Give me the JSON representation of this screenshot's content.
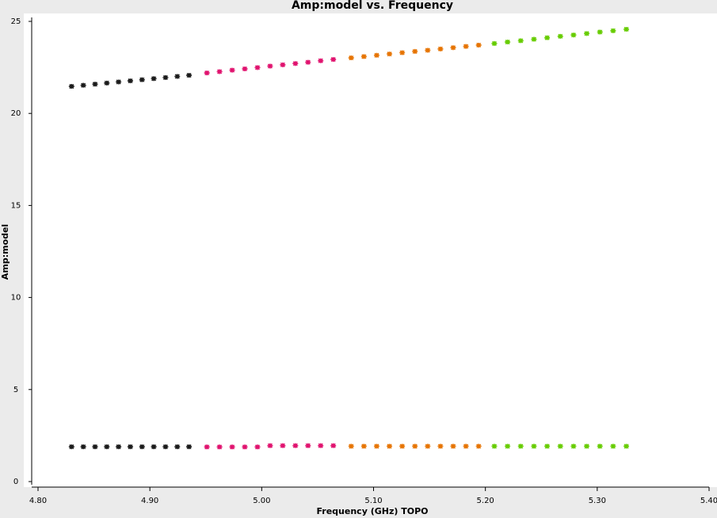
{
  "chart_data": {
    "type": "scatter",
    "title": "Amp:model vs. Frequency",
    "x_label": "Frequency (GHz) TOPO",
    "y_label": "Amp:model",
    "xlim": [
      4.8,
      5.4
    ],
    "ylim": [
      0,
      25
    ],
    "xticks": [
      {
        "value": 4.8,
        "label": "4.80"
      },
      {
        "value": 4.9,
        "label": "4.90"
      },
      {
        "value": 5.0,
        "label": "5.00"
      },
      {
        "value": 5.1,
        "label": "5.10"
      },
      {
        "value": 5.2,
        "label": "5.20"
      },
      {
        "value": 5.3,
        "label": "5.30"
      },
      {
        "value": 5.4,
        "label": "5.40"
      }
    ],
    "yticks": [
      0,
      5,
      10,
      15,
      20,
      25
    ],
    "series": [
      {
        "color": "#1a1a1a",
        "x": [
          4.83,
          4.8405,
          4.851,
          4.8615,
          4.872,
          4.8825,
          4.893,
          4.9035,
          4.914,
          4.9245,
          4.935
        ],
        "values": [
          21.47,
          21.53,
          21.59,
          21.65,
          21.71,
          21.77,
          21.83,
          21.89,
          21.95,
          22.01,
          22.07
        ]
      },
      {
        "color": "#1a1a1a",
        "x": [
          4.83,
          4.8405,
          4.851,
          4.8615,
          4.872,
          4.8825,
          4.893,
          4.9035,
          4.914,
          4.9245,
          4.935
        ],
        "values": [
          1.89,
          1.89,
          1.89,
          1.89,
          1.89,
          1.89,
          1.89,
          1.89,
          1.89,
          1.89,
          1.89
        ]
      },
      {
        "color": "#e0126e",
        "x": [
          4.951,
          4.9623,
          4.9736,
          4.9849,
          4.9962,
          5.0075,
          5.0188,
          5.0301,
          5.0414,
          5.0527,
          5.064
        ],
        "values": [
          22.2,
          22.27,
          22.35,
          22.42,
          22.49,
          22.57,
          22.64,
          22.71,
          22.78,
          22.86,
          22.93
        ]
      },
      {
        "color": "#e0126e",
        "x": [
          4.951,
          4.9623,
          4.9736,
          4.9849,
          4.9962,
          5.0075,
          5.0188,
          5.0301,
          5.0414,
          5.0527,
          5.064
        ],
        "values": [
          1.88,
          1.88,
          1.88,
          1.88,
          1.88,
          1.95,
          1.95,
          1.95,
          1.95,
          1.95,
          1.95
        ]
      },
      {
        "color": "#e67300",
        "x": [
          5.08,
          5.0914,
          5.1028,
          5.1142,
          5.1256,
          5.137,
          5.1484,
          5.1598,
          5.1712,
          5.1826,
          5.194
        ],
        "values": [
          23.02,
          23.09,
          23.16,
          23.23,
          23.3,
          23.37,
          23.43,
          23.5,
          23.57,
          23.64,
          23.71
        ]
      },
      {
        "color": "#e67300",
        "x": [
          5.08,
          5.0914,
          5.1028,
          5.1142,
          5.1256,
          5.137,
          5.1484,
          5.1598,
          5.1712,
          5.1826,
          5.194
        ],
        "values": [
          1.92,
          1.92,
          1.92,
          1.92,
          1.92,
          1.92,
          1.92,
          1.92,
          1.92,
          1.92,
          1.92
        ]
      },
      {
        "color": "#66cc00",
        "x": [
          5.208,
          5.2198,
          5.2316,
          5.2434,
          5.2552,
          5.267,
          5.2788,
          5.2906,
          5.3024,
          5.3142,
          5.326
        ],
        "values": [
          23.8,
          23.88,
          23.95,
          24.03,
          24.11,
          24.19,
          24.26,
          24.34,
          24.42,
          24.49,
          24.57
        ]
      },
      {
        "color": "#66cc00",
        "x": [
          5.208,
          5.2198,
          5.2316,
          5.2434,
          5.2552,
          5.267,
          5.2788,
          5.2906,
          5.3024,
          5.3142,
          5.326
        ],
        "values": [
          1.92,
          1.92,
          1.92,
          1.92,
          1.92,
          1.92,
          1.92,
          1.92,
          1.92,
          1.92,
          1.92
        ]
      }
    ]
  }
}
